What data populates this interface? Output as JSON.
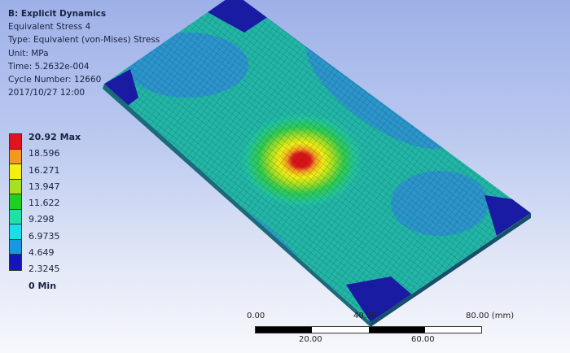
{
  "info": {
    "title": "B: Explicit Dynamics",
    "result_name": "Equivalent Stress 4",
    "type": "Type: Equivalent (von-Mises) Stress",
    "unit": "Unit: MPa",
    "time": "Time: 5.2632e-004",
    "cycle": "Cycle Number: 12660",
    "date": "2017/10/27 12:00"
  },
  "legend": {
    "labels": [
      "20.92 Max",
      "18.596",
      "16.271",
      "13.947",
      "11.622",
      "9.298",
      "6.9735",
      "4.649",
      "2.3245",
      "0 Min"
    ],
    "colors": [
      "#e0141c",
      "#f29a1e",
      "#f4ee14",
      "#a8e020",
      "#20d020",
      "#20e0a8",
      "#18e0e8",
      "#1898e0",
      "#1414b8"
    ]
  },
  "scale_bar": {
    "top_labels": [
      "0.00",
      "40.00",
      "80.00 (mm)"
    ],
    "bottom_labels": [
      "20.00",
      "60.00"
    ]
  },
  "contour_colors": {
    "base": "#22b6a6",
    "low": "#2e8fd4",
    "min": "#1a1aa8",
    "max": "#d81010"
  }
}
